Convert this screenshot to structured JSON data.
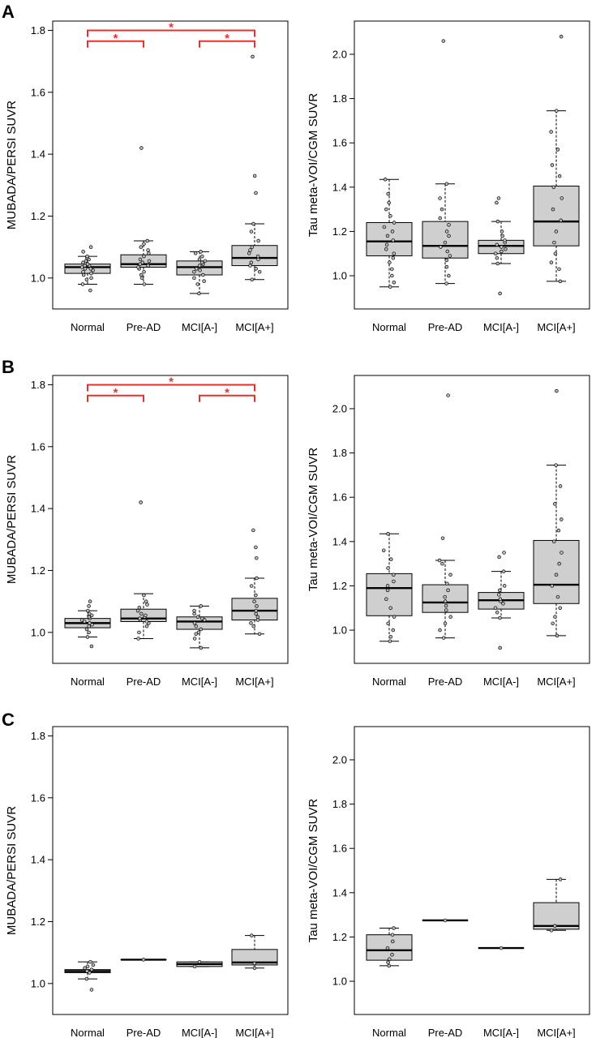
{
  "colors": {
    "box_fill": "#cfcfcf",
    "significance": "#e8312b",
    "point_fill": "#bdbdbd"
  },
  "rows": [
    {
      "letter": "A"
    },
    {
      "letter": "B"
    },
    {
      "letter": "C"
    }
  ],
  "chart_data": [
    {
      "type": "boxplot",
      "panel": "A",
      "side": "left",
      "ylabel": "MUBADA/PERSI SUVR",
      "ylim": [
        0.9,
        1.83
      ],
      "yticks": [
        1.0,
        1.2,
        1.4,
        1.6,
        1.8
      ],
      "categories": [
        "Normal",
        "Pre-AD",
        "MCI[A-]",
        "MCI[A+]"
      ],
      "boxes": [
        {
          "whislo": 0.98,
          "q1": 1.015,
          "med": 1.035,
          "q3": 1.045,
          "whishi": 1.07
        },
        {
          "whislo": 0.98,
          "q1": 1.035,
          "med": 1.045,
          "q3": 1.075,
          "whishi": 1.12
        },
        {
          "whislo": 0.95,
          "q1": 1.01,
          "med": 1.035,
          "q3": 1.055,
          "whishi": 1.085
        },
        {
          "whislo": 0.995,
          "q1": 1.04,
          "med": 1.065,
          "q3": 1.105,
          "whishi": 1.175
        }
      ],
      "points": [
        [
          0.96,
          0.98,
          0.995,
          1.0,
          1.01,
          1.015,
          1.02,
          1.025,
          1.03,
          1.03,
          1.035,
          1.04,
          1.04,
          1.045,
          1.05,
          1.055,
          1.06,
          1.065,
          1.07,
          1.085,
          1.1
        ],
        [
          0.98,
          1.0,
          1.01,
          1.02,
          1.03,
          1.035,
          1.04,
          1.045,
          1.05,
          1.055,
          1.06,
          1.07,
          1.08,
          1.09,
          1.1,
          1.11,
          1.12,
          1.42
        ],
        [
          0.95,
          0.98,
          0.99,
          1.0,
          1.01,
          1.02,
          1.025,
          1.03,
          1.04,
          1.045,
          1.05,
          1.055,
          1.06,
          1.07,
          1.08,
          1.085
        ],
        [
          0.995,
          1.02,
          1.03,
          1.04,
          1.05,
          1.06,
          1.07,
          1.08,
          1.09,
          1.1,
          1.12,
          1.15,
          1.175,
          1.275,
          1.33,
          1.715
        ]
      ],
      "significance": [
        {
          "from": 0,
          "to": 3,
          "y": 1.8,
          "label": "*"
        },
        {
          "from": 0,
          "to": 1,
          "y": 1.765,
          "label": "*"
        },
        {
          "from": 2,
          "to": 3,
          "y": 1.765,
          "label": "*"
        }
      ]
    },
    {
      "type": "boxplot",
      "panel": "A",
      "side": "right",
      "ylabel": "Tau meta-VOI/CGM SUVR",
      "ylim": [
        0.85,
        2.15
      ],
      "yticks": [
        1.0,
        1.2,
        1.4,
        1.6,
        1.8,
        2.0
      ],
      "categories": [
        "Normal",
        "Pre-AD",
        "MCI[A-]",
        "MCI[A+]"
      ],
      "boxes": [
        {
          "whislo": 0.95,
          "q1": 1.09,
          "med": 1.155,
          "q3": 1.24,
          "whishi": 1.435
        },
        {
          "whislo": 0.965,
          "q1": 1.08,
          "med": 1.135,
          "q3": 1.245,
          "whishi": 1.415
        },
        {
          "whislo": 1.055,
          "q1": 1.1,
          "med": 1.135,
          "q3": 1.16,
          "whishi": 1.245
        },
        {
          "whislo": 0.975,
          "q1": 1.135,
          "med": 1.245,
          "q3": 1.405,
          "whishi": 1.745
        }
      ],
      "points": [
        [
          0.95,
          0.97,
          1.0,
          1.03,
          1.06,
          1.08,
          1.1,
          1.12,
          1.14,
          1.16,
          1.18,
          1.2,
          1.22,
          1.24,
          1.27,
          1.3,
          1.33,
          1.37,
          1.435
        ],
        [
          0.965,
          1.0,
          1.04,
          1.07,
          1.09,
          1.11,
          1.13,
          1.15,
          1.18,
          1.2,
          1.23,
          1.26,
          1.3,
          1.35,
          1.415,
          2.06
        ],
        [
          0.92,
          1.055,
          1.08,
          1.1,
          1.11,
          1.12,
          1.13,
          1.14,
          1.15,
          1.16,
          1.18,
          1.2,
          1.245,
          1.33,
          1.35
        ],
        [
          0.975,
          1.03,
          1.06,
          1.1,
          1.15,
          1.2,
          1.25,
          1.3,
          1.35,
          1.4,
          1.45,
          1.5,
          1.57,
          1.65,
          1.745,
          2.08
        ]
      ]
    },
    {
      "type": "boxplot",
      "panel": "B",
      "side": "left",
      "ylabel": "MUBADA/PERSI SUVR",
      "ylim": [
        0.9,
        1.83
      ],
      "yticks": [
        1.0,
        1.2,
        1.4,
        1.6,
        1.8
      ],
      "categories": [
        "Normal",
        "Pre-AD",
        "MCI[A-]",
        "MCI[A+]"
      ],
      "boxes": [
        {
          "whislo": 0.985,
          "q1": 1.015,
          "med": 1.03,
          "q3": 1.045,
          "whishi": 1.07
        },
        {
          "whislo": 0.98,
          "q1": 1.035,
          "med": 1.045,
          "q3": 1.075,
          "whishi": 1.125
        },
        {
          "whislo": 0.95,
          "q1": 1.01,
          "med": 1.035,
          "q3": 1.05,
          "whishi": 1.085
        },
        {
          "whislo": 0.995,
          "q1": 1.04,
          "med": 1.07,
          "q3": 1.11,
          "whishi": 1.175
        }
      ],
      "points": [
        [
          0.955,
          0.985,
          1.0,
          1.01,
          1.02,
          1.025,
          1.03,
          1.035,
          1.04,
          1.045,
          1.05,
          1.055,
          1.06,
          1.07,
          1.085,
          1.1
        ],
        [
          0.98,
          1.0,
          1.02,
          1.03,
          1.035,
          1.04,
          1.045,
          1.05,
          1.055,
          1.06,
          1.07,
          1.08,
          1.09,
          1.1,
          1.12,
          1.42
        ],
        [
          0.95,
          0.98,
          0.995,
          1.0,
          1.01,
          1.02,
          1.03,
          1.04,
          1.045,
          1.05,
          1.06,
          1.07,
          1.085
        ],
        [
          0.995,
          1.02,
          1.03,
          1.04,
          1.05,
          1.06,
          1.07,
          1.085,
          1.1,
          1.12,
          1.15,
          1.175,
          1.24,
          1.275,
          1.33
        ]
      ],
      "significance": [
        {
          "from": 0,
          "to": 3,
          "y": 1.8,
          "label": "*"
        },
        {
          "from": 0,
          "to": 1,
          "y": 1.765,
          "label": "*"
        },
        {
          "from": 2,
          "to": 3,
          "y": 1.765,
          "label": "*"
        }
      ]
    },
    {
      "type": "boxplot",
      "panel": "B",
      "side": "right",
      "ylabel": "Tau meta-VOI/CGM SUVR",
      "ylim": [
        0.85,
        2.15
      ],
      "yticks": [
        1.0,
        1.2,
        1.4,
        1.6,
        1.8,
        2.0
      ],
      "categories": [
        "Normal",
        "Pre-AD",
        "MCI[A-]",
        "MCI[A+]"
      ],
      "boxes": [
        {
          "whislo": 0.95,
          "q1": 1.065,
          "med": 1.19,
          "q3": 1.255,
          "whishi": 1.435
        },
        {
          "whislo": 0.965,
          "q1": 1.08,
          "med": 1.125,
          "q3": 1.205,
          "whishi": 1.315
        },
        {
          "whislo": 1.055,
          "q1": 1.095,
          "med": 1.135,
          "q3": 1.17,
          "whishi": 1.265
        },
        {
          "whislo": 0.975,
          "q1": 1.12,
          "med": 1.205,
          "q3": 1.405,
          "whishi": 1.745
        }
      ],
      "points": [
        [
          0.95,
          0.97,
          1.0,
          1.03,
          1.06,
          1.1,
          1.14,
          1.18,
          1.2,
          1.22,
          1.25,
          1.28,
          1.32,
          1.36,
          1.435
        ],
        [
          0.965,
          1.0,
          1.03,
          1.06,
          1.09,
          1.11,
          1.13,
          1.15,
          1.18,
          1.21,
          1.25,
          1.3,
          1.315,
          1.415,
          2.06
        ],
        [
          0.92,
          1.055,
          1.08,
          1.1,
          1.12,
          1.13,
          1.14,
          1.16,
          1.18,
          1.2,
          1.265,
          1.33,
          1.35
        ],
        [
          0.975,
          1.03,
          1.06,
          1.1,
          1.15,
          1.2,
          1.25,
          1.3,
          1.35,
          1.4,
          1.45,
          1.5,
          1.57,
          1.65,
          1.745,
          2.08
        ]
      ]
    },
    {
      "type": "boxplot",
      "panel": "C",
      "side": "left",
      "ylabel": "MUBADA/PERSI SUVR",
      "ylim": [
        0.9,
        1.83
      ],
      "yticks": [
        1.0,
        1.2,
        1.4,
        1.6,
        1.8
      ],
      "categories": [
        "Normal",
        "Pre-AD",
        "MCI[A-]",
        "MCI[A+]"
      ],
      "boxes": [
        {
          "whislo": 1.015,
          "q1": 1.035,
          "med": 1.04,
          "q3": 1.045,
          "whishi": 1.07
        },
        {
          "whislo": 1.077,
          "q1": 1.077,
          "med": 1.077,
          "q3": 1.077,
          "whishi": 1.077
        },
        {
          "whislo": 1.055,
          "q1": 1.055,
          "med": 1.063,
          "q3": 1.07,
          "whishi": 1.07
        },
        {
          "whislo": 1.05,
          "q1": 1.06,
          "med": 1.068,
          "q3": 1.11,
          "whishi": 1.155
        }
      ],
      "points": [
        [
          0.98,
          1.015,
          1.035,
          1.04,
          1.045,
          1.05,
          1.055,
          1.06,
          1.07
        ],
        [
          1.077
        ],
        [
          1.055,
          1.07
        ],
        [
          1.05,
          1.065,
          1.155
        ]
      ]
    },
    {
      "type": "boxplot",
      "panel": "C",
      "side": "right",
      "ylabel": "Tau meta-VOI/CGM SUVR",
      "ylim": [
        0.85,
        2.15
      ],
      "yticks": [
        1.0,
        1.2,
        1.4,
        1.6,
        1.8,
        2.0
      ],
      "categories": [
        "Normal",
        "Pre-AD",
        "MCI[A-]",
        "MCI[A+]"
      ],
      "boxes": [
        {
          "whislo": 1.07,
          "q1": 1.095,
          "med": 1.14,
          "q3": 1.21,
          "whishi": 1.24
        },
        {
          "whislo": 1.275,
          "q1": 1.275,
          "med": 1.275,
          "q3": 1.275,
          "whishi": 1.275
        },
        {
          "whislo": 1.15,
          "q1": 1.15,
          "med": 1.15,
          "q3": 1.15,
          "whishi": 1.15
        },
        {
          "whislo": 1.23,
          "q1": 1.235,
          "med": 1.25,
          "q3": 1.355,
          "whishi": 1.46
        }
      ],
      "points": [
        [
          1.07,
          1.085,
          1.1,
          1.12,
          1.15,
          1.18,
          1.21,
          1.24
        ],
        [
          1.275
        ],
        [
          1.15
        ],
        [
          1.23,
          1.25,
          1.46
        ]
      ]
    }
  ]
}
